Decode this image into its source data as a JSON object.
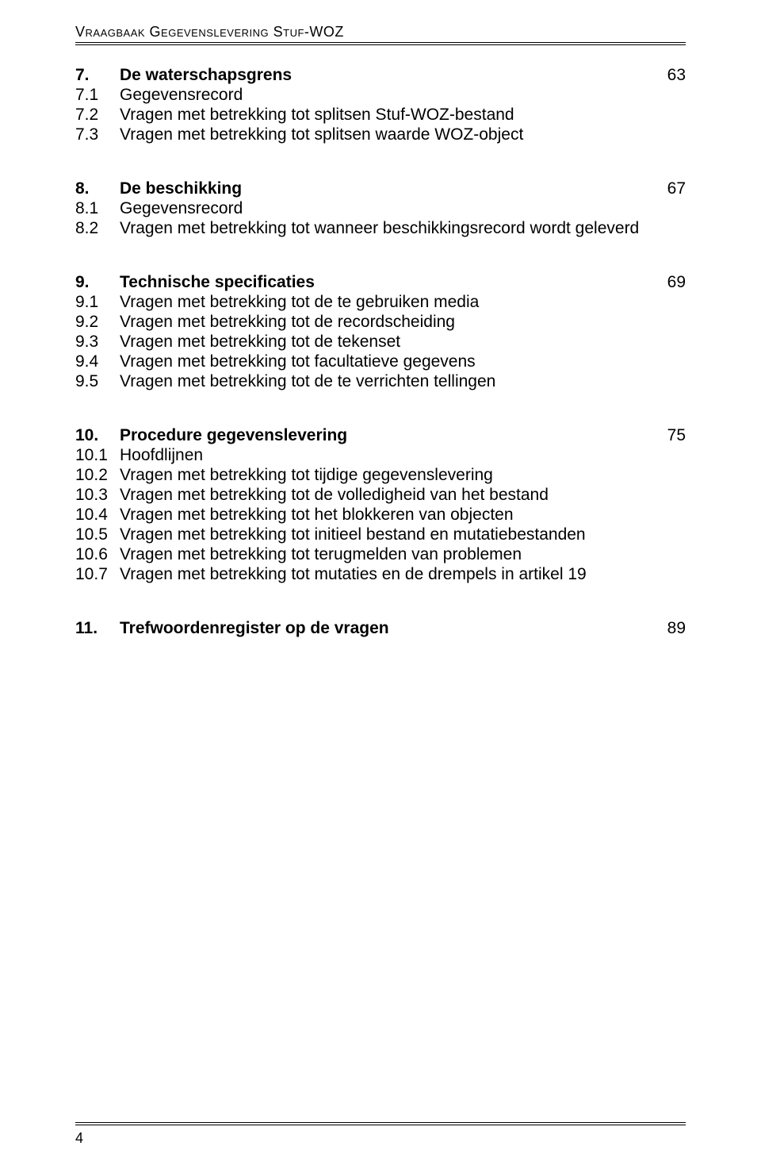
{
  "header_title": "Vraagbaak Gegevenslevering Stuf-WOZ",
  "page_number": "4",
  "sections": [
    {
      "num": "7.",
      "title": "De waterschapsgrens",
      "page": "63",
      "subs": [
        {
          "num": "7.1",
          "title": "Gegevensrecord"
        },
        {
          "num": "7.2",
          "title": "Vragen met betrekking tot splitsen Stuf-WOZ-bestand"
        },
        {
          "num": "7.3",
          "title": "Vragen met betrekking tot splitsen waarde WOZ-object"
        }
      ]
    },
    {
      "num": "8.",
      "title": "De beschikking",
      "page": "67",
      "subs": [
        {
          "num": "8.1",
          "title": "Gegevensrecord"
        },
        {
          "num": "8.2",
          "title": "Vragen met betrekking tot wanneer beschikkingsrecord wordt geleverd"
        }
      ]
    },
    {
      "num": "9.",
      "title": "Technische specificaties",
      "page": "69",
      "subs": [
        {
          "num": "9.1",
          "title": "Vragen met betrekking tot de te gebruiken media"
        },
        {
          "num": "9.2",
          "title": "Vragen met betrekking tot de recordscheiding"
        },
        {
          "num": "9.3",
          "title": "Vragen met betrekking tot de tekenset"
        },
        {
          "num": "9.4",
          "title": "Vragen met betrekking tot facultatieve gegevens"
        },
        {
          "num": "9.5",
          "title": "Vragen met betrekking tot de te verrichten tellingen"
        }
      ]
    },
    {
      "num": "10.",
      "title": "Procedure gegevenslevering",
      "page": "75",
      "subs": [
        {
          "num": "10.1",
          "title": "Hoofdlijnen"
        },
        {
          "num": "10.2",
          "title": "Vragen met betrekking tot tijdige gegevenslevering"
        },
        {
          "num": "10.3",
          "title": "Vragen met betrekking tot de volledigheid van het bestand"
        },
        {
          "num": "10.4",
          "title": "Vragen met betrekking tot het blokkeren van objecten"
        },
        {
          "num": "10.5",
          "title": "Vragen met betrekking tot initieel bestand en mutatiebestanden"
        },
        {
          "num": "10.6",
          "title": "Vragen met betrekking tot terugmelden van problemen"
        },
        {
          "num": "10.7",
          "title": "Vragen met betrekking tot mutaties en de drempels in artikel 19"
        }
      ]
    },
    {
      "num": "11.",
      "title": "Trefwoordenregister op de vragen",
      "page": "89",
      "subs": []
    }
  ]
}
